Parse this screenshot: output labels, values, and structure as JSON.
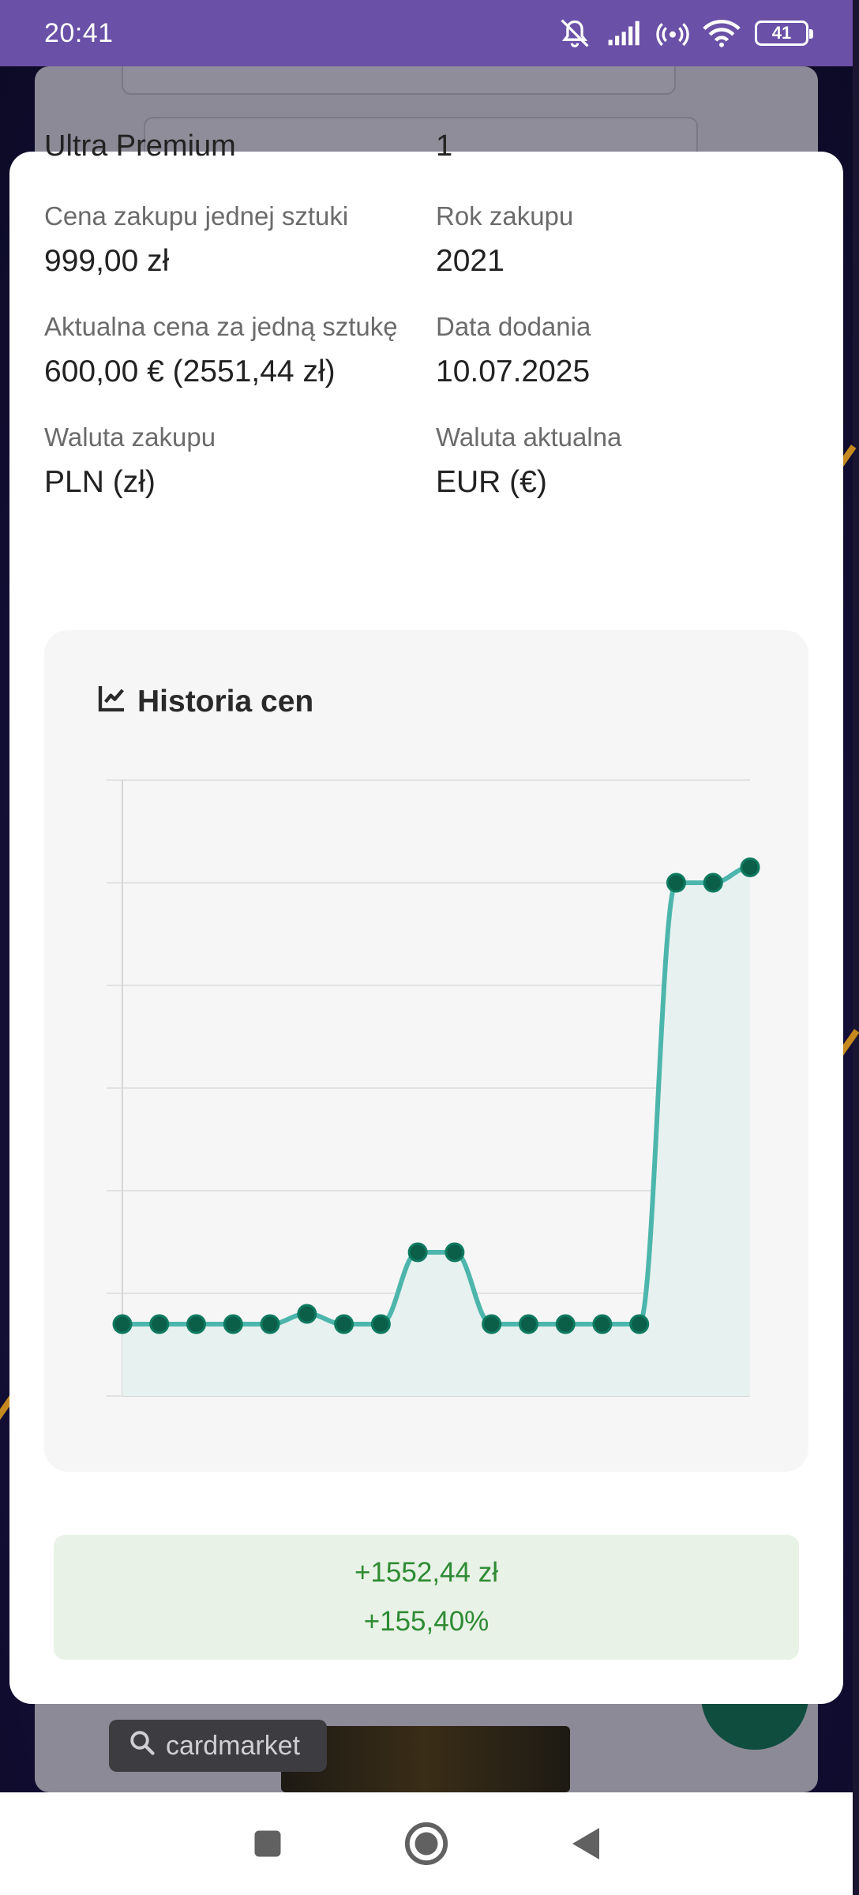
{
  "status_bar": {
    "time": "20:41",
    "battery": "41"
  },
  "background": {
    "search_pill_label": "cardmarket"
  },
  "modal": {
    "cut_top_left": "Ultra Premium",
    "cut_top_right": "1",
    "details": [
      {
        "label": "Cena zakupu jednej sztuki",
        "value": "999,00 zł"
      },
      {
        "label": "Rok zakupu",
        "value": "2021"
      },
      {
        "label": "Aktualna cena za jedną sztukę",
        "value": "600,00 € (2551,44 zł)"
      },
      {
        "label": "Data dodania",
        "value": "10.07.2025"
      },
      {
        "label": "Waluta zakupu",
        "value": "PLN (zł)"
      },
      {
        "label": "Waluta aktualna",
        "value": "EUR (€)"
      }
    ],
    "chart_title": "Historia cen",
    "result": {
      "amount": "+1552,44 zł",
      "percent": "+155,40%"
    }
  },
  "colors": {
    "status_bar": "#6a50a7",
    "line": "#4db6ac",
    "point": "#0b5e48",
    "fill": "#e7f1ef",
    "gain": "#2e8b34"
  },
  "chart_data": {
    "type": "line",
    "title": "Historia cen",
    "x": [
      1,
      2,
      3,
      4,
      5,
      6,
      7,
      8,
      9,
      10,
      11,
      12,
      13,
      14,
      15,
      16,
      17,
      18
    ],
    "values": [
      1,
      1,
      1,
      1,
      1,
      1.1,
      1,
      1,
      1.7,
      1.7,
      1,
      1,
      1,
      1,
      1,
      5.3,
      5.3,
      5.45
    ],
    "ylim": [
      0.3,
      6.3
    ],
    "grid": true,
    "xlabel": "",
    "ylabel": ""
  }
}
